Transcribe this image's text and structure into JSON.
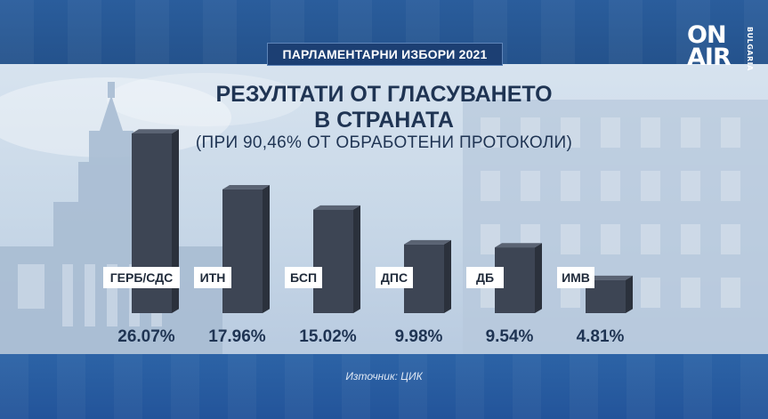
{
  "header": {
    "badge": "ПАРЛАМЕНТАРНИ ИЗБОРИ 2021"
  },
  "logo": {
    "line1": "ON",
    "line2": "AIR",
    "side": "BULGARIA"
  },
  "chart_data": {
    "type": "bar",
    "title_line1": "РЕЗУЛТАТИ ОТ ГЛАСУВАНЕТО",
    "title_line2": "В СТРАНАТА",
    "subtitle": "(ПРИ   90,46%   ОТ ОБРАБОТЕНИ ПРОТОКОЛИ)",
    "categories": [
      "ГЕРБ/СДС",
      "ИТН",
      "БСП",
      "ДПС",
      "ДБ",
      "ИМВ"
    ],
    "values": [
      26.07,
      17.96,
      15.02,
      9.98,
      9.54,
      4.81
    ],
    "value_labels": [
      "26.07%",
      "17.96%",
      "15.02%",
      "9.98%",
      "9.54%",
      "4.81%"
    ],
    "ylim": [
      0,
      26.07
    ],
    "grid": false,
    "colors": {
      "bar": "#3d4554",
      "bar_light": "#5a6373",
      "label_bg": "#ffffff",
      "value_text": "#1f3453"
    }
  },
  "footer": {
    "source": "Източник: ЦИК"
  }
}
